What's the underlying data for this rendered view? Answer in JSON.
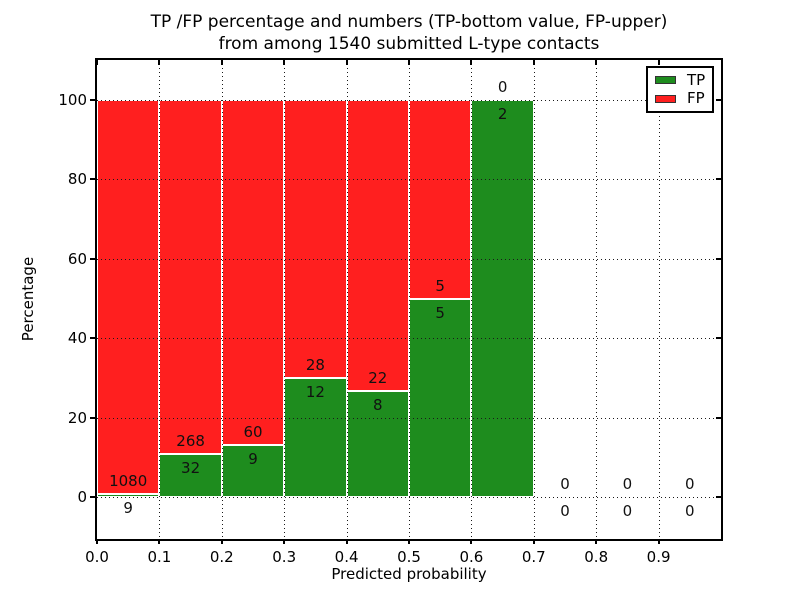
{
  "chart_data": {
    "type": "bar",
    "stacked": true,
    "title_line1": "TP /FP percentage and numbers (TP-bottom value, FP-upper)",
    "title_line2": "from among 1540 submitted L-type contacts",
    "xlabel": "Predicted probability",
    "ylabel": "Percentage",
    "xlim": [
      0.0,
      1.0
    ],
    "ylim": [
      -10.6,
      110.1
    ],
    "xticks": [
      "0.0",
      "0.1",
      "0.2",
      "0.3",
      "0.4",
      "0.5",
      "0.6",
      "0.7",
      "0.8",
      "0.9"
    ],
    "yticks": [
      0,
      20,
      40,
      60,
      80,
      100
    ],
    "grid": "dotted",
    "grid_color": "#1a1a1a",
    "colors": {
      "tp": "#1e8c1e",
      "fp": "#ff1f1f",
      "bar_edge": "#ffffff"
    },
    "legend": {
      "position": "upper right",
      "entries": [
        {
          "label": "TP",
          "color": "#1e8c1e"
        },
        {
          "label": "FP",
          "color": "#ff1f1f"
        }
      ]
    },
    "bins": [
      {
        "x0": 0.0,
        "x1": 0.1,
        "tp": 9,
        "fp": 1080,
        "tp_pct": 0.8
      },
      {
        "x0": 0.1,
        "x1": 0.2,
        "tp": 32,
        "fp": 268,
        "tp_pct": 10.7
      },
      {
        "x0": 0.2,
        "x1": 0.3,
        "tp": 9,
        "fp": 60,
        "tp_pct": 13.0
      },
      {
        "x0": 0.3,
        "x1": 0.4,
        "tp": 12,
        "fp": 28,
        "tp_pct": 30.0
      },
      {
        "x0": 0.4,
        "x1": 0.5,
        "tp": 8,
        "fp": 22,
        "tp_pct": 26.7
      },
      {
        "x0": 0.5,
        "x1": 0.6,
        "tp": 5,
        "fp": 5,
        "tp_pct": 50.0
      },
      {
        "x0": 0.6,
        "x1": 0.7,
        "tp": 2,
        "fp": 0,
        "tp_pct": 100.0
      },
      {
        "x0": 0.7,
        "x1": 0.8,
        "tp": 0,
        "fp": 0,
        "tp_pct": null
      },
      {
        "x0": 0.8,
        "x1": 0.9,
        "tp": 0,
        "fp": 0,
        "tp_pct": null
      },
      {
        "x0": 0.9,
        "x1": 1.0,
        "tp": 0,
        "fp": 0,
        "tp_pct": null
      }
    ]
  }
}
